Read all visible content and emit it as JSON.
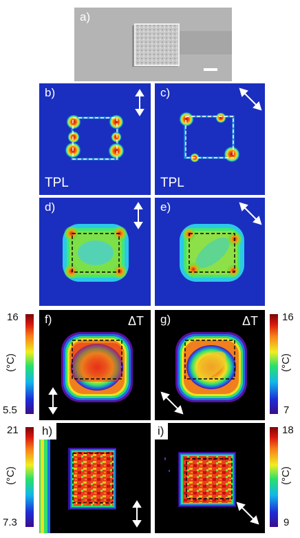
{
  "panels": {
    "a": {
      "label": "a)"
    },
    "b": {
      "label": "b)",
      "caption": "TPL",
      "polarization": "vertical"
    },
    "c": {
      "label": "c)",
      "caption": "TPL",
      "polarization": "diagonal"
    },
    "d": {
      "label": "d)",
      "polarization": "vertical"
    },
    "e": {
      "label": "e)",
      "polarization": "diagonal"
    },
    "f": {
      "label": "f)",
      "caption": "ΔT",
      "polarization": "vertical"
    },
    "g": {
      "label": "g)",
      "caption": "ΔT",
      "polarization": "diagonal"
    },
    "h": {
      "label": "h)",
      "polarization": "vertical"
    },
    "i": {
      "label": "i)",
      "polarization": "diagonal"
    }
  },
  "colorbars": {
    "f": {
      "max": "16",
      "min": "5.5",
      "unit": "(°C)"
    },
    "g": {
      "max": "16",
      "min": "7",
      "unit": "(°C)"
    },
    "h": {
      "max": "21",
      "min": "7.3",
      "unit": "(°C)"
    },
    "i": {
      "max": "18",
      "min": "9",
      "unit": "(°C)"
    }
  },
  "colors": {
    "map_background": "#1a2fbf",
    "thermal_background": "#000000",
    "hot": "#d4140a",
    "arrow": "#ffffff"
  }
}
